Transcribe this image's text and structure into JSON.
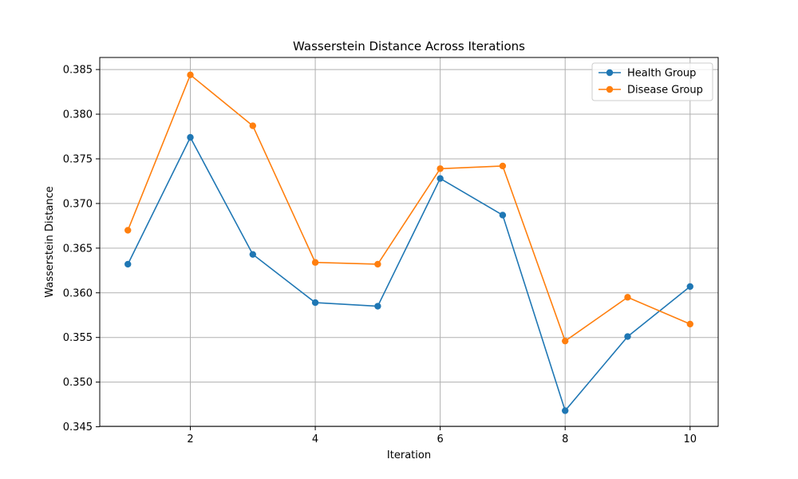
{
  "chart_data": {
    "type": "line",
    "title": "Wasserstein Distance Across Iterations",
    "xlabel": "Iteration",
    "ylabel": "Wasserstein Distance",
    "x": [
      1,
      2,
      3,
      4,
      5,
      6,
      7,
      8,
      9,
      10
    ],
    "xlim": [
      0.55,
      10.45
    ],
    "ylim": [
      0.34505,
      0.38635
    ],
    "xticks": [
      2,
      4,
      6,
      8,
      10
    ],
    "xtick_labels": [
      "2",
      "4",
      "6",
      "8",
      "10"
    ],
    "yticks": [
      0.345,
      0.35,
      0.355,
      0.36,
      0.365,
      0.37,
      0.375,
      0.38,
      0.385
    ],
    "ytick_labels": [
      "0.345",
      "0.350",
      "0.355",
      "0.360",
      "0.365",
      "0.370",
      "0.375",
      "0.380",
      "0.385"
    ],
    "grid": true,
    "legend_position": "top-right",
    "series": [
      {
        "name": "Health Group",
        "color": "#1f77b4",
        "marker": "circle",
        "values": [
          0.3632,
          0.3774,
          0.3643,
          0.3589,
          0.3585,
          0.3728,
          0.3687,
          0.3468,
          0.3551,
          0.3607
        ]
      },
      {
        "name": "Disease Group",
        "color": "#ff7f0e",
        "marker": "circle",
        "values": [
          0.367,
          0.3844,
          0.3787,
          0.3634,
          0.3632,
          0.3739,
          0.3742,
          0.3546,
          0.3595,
          0.3565
        ]
      }
    ]
  }
}
